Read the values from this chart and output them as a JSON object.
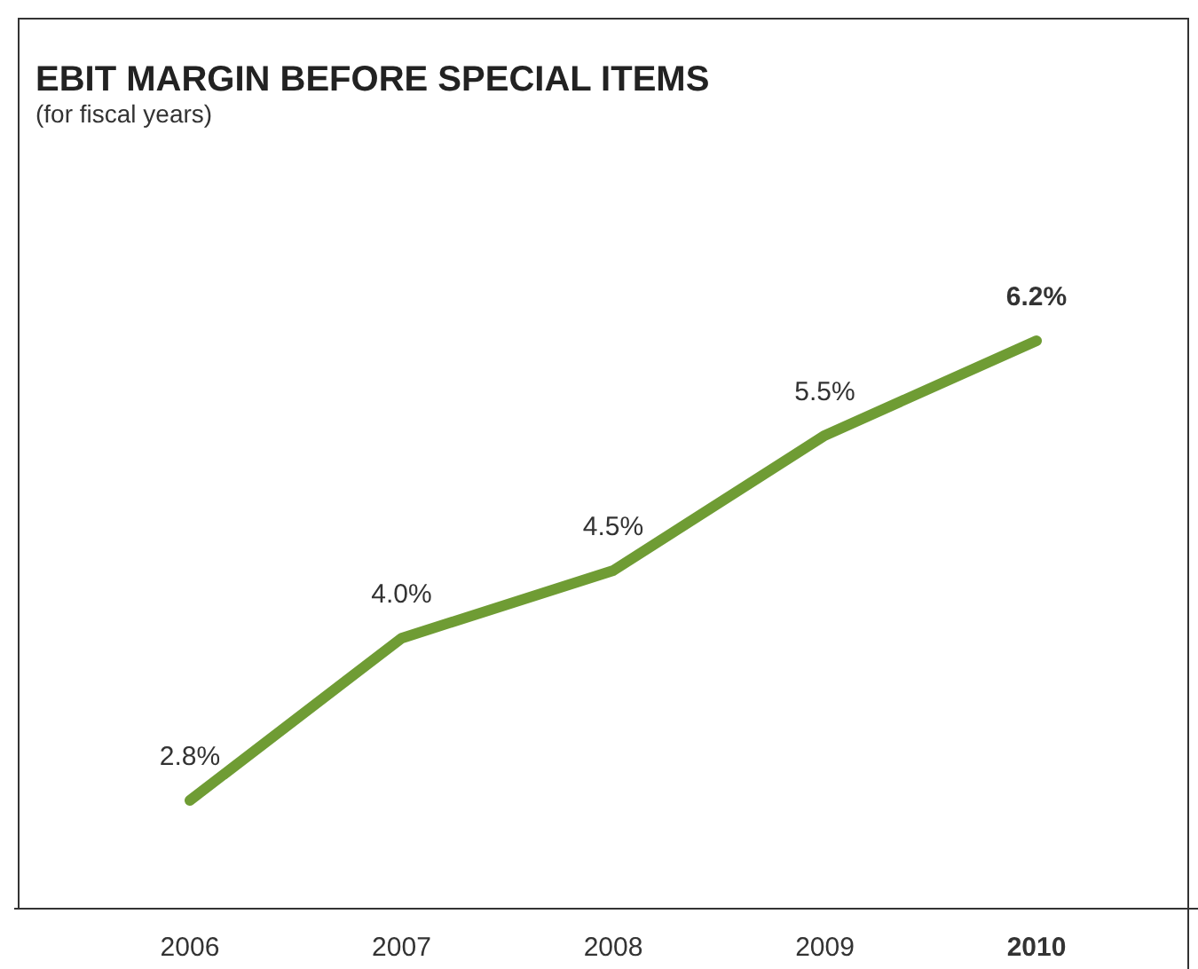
{
  "chart_data": {
    "type": "line",
    "title": "EBIT MARGIN BEFORE SPECIAL ITEMS",
    "subtitle": "(for fiscal years)",
    "categories": [
      "2006",
      "2007",
      "2008",
      "2009",
      "2010"
    ],
    "series": [
      {
        "color": "#6f9c34",
        "values": [
          2.8,
          4.0,
          4.5,
          5.5,
          6.2
        ],
        "value_labels": [
          "2.8%",
          "4.0%",
          "4.5%",
          "5.5%",
          "6.2%"
        ]
      }
    ],
    "marker": "none",
    "line_style": "solid"
  }
}
